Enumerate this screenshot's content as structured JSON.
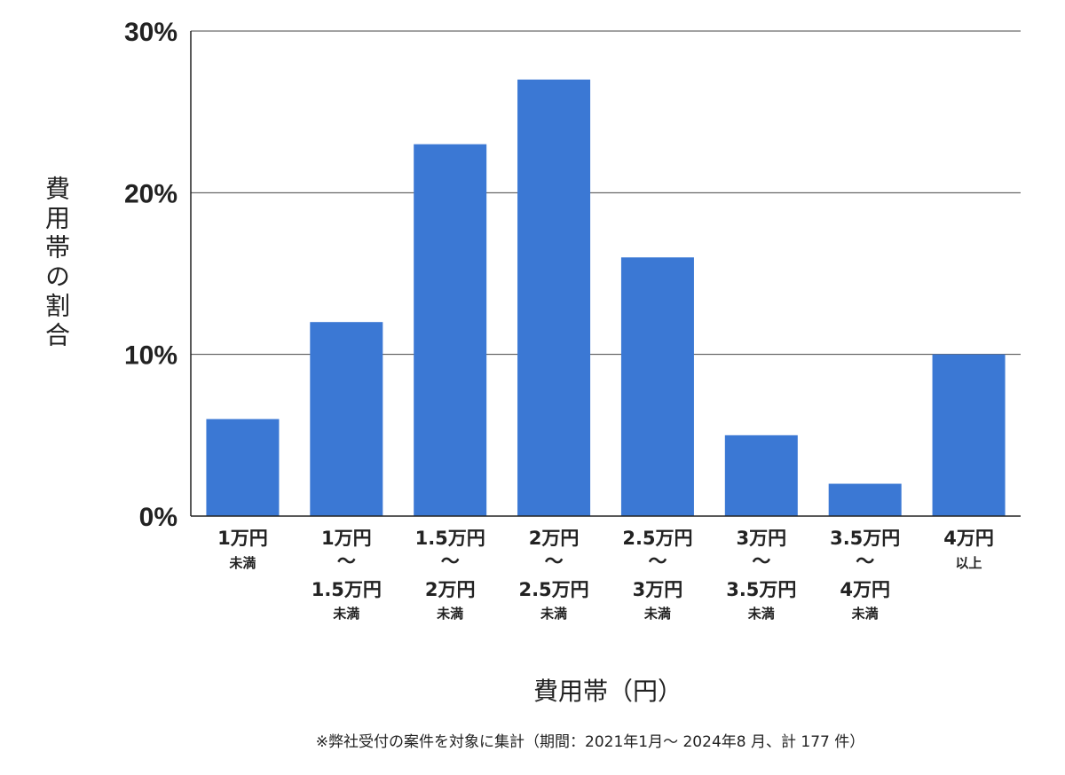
{
  "chart_data": {
    "type": "bar",
    "categories": [
      [
        "1万円",
        "未満"
      ],
      [
        "1万円",
        "〜",
        "1.5万円",
        "未満"
      ],
      [
        "1.5万円",
        "〜",
        "2万円",
        "未満"
      ],
      [
        "2万円",
        "〜",
        "2.5万円",
        "未満"
      ],
      [
        "2.5万円",
        "〜",
        "3万円",
        "未満"
      ],
      [
        "3万円",
        "〜",
        "3.5万円",
        "未満"
      ],
      [
        "3.5万円",
        "〜",
        "4万円",
        "未満"
      ],
      [
        "4万円",
        "以上"
      ]
    ],
    "values": [
      6,
      12,
      23,
      27,
      16,
      5,
      2,
      10
    ],
    "unit": "%",
    "ylim": [
      0,
      30
    ],
    "yticks": [
      0,
      10,
      20,
      30
    ],
    "ytick_labels": [
      "0%",
      "10%",
      "20%",
      "30%"
    ],
    "xlabel": "費用帯（円）",
    "ylabel": "費用帯の割合",
    "grid": true,
    "bar_color": "#3b78d4",
    "note": "※弊社受付の案件を対象に集計（期間：2021年1月〜 2024年8 月、計 177 件）"
  }
}
